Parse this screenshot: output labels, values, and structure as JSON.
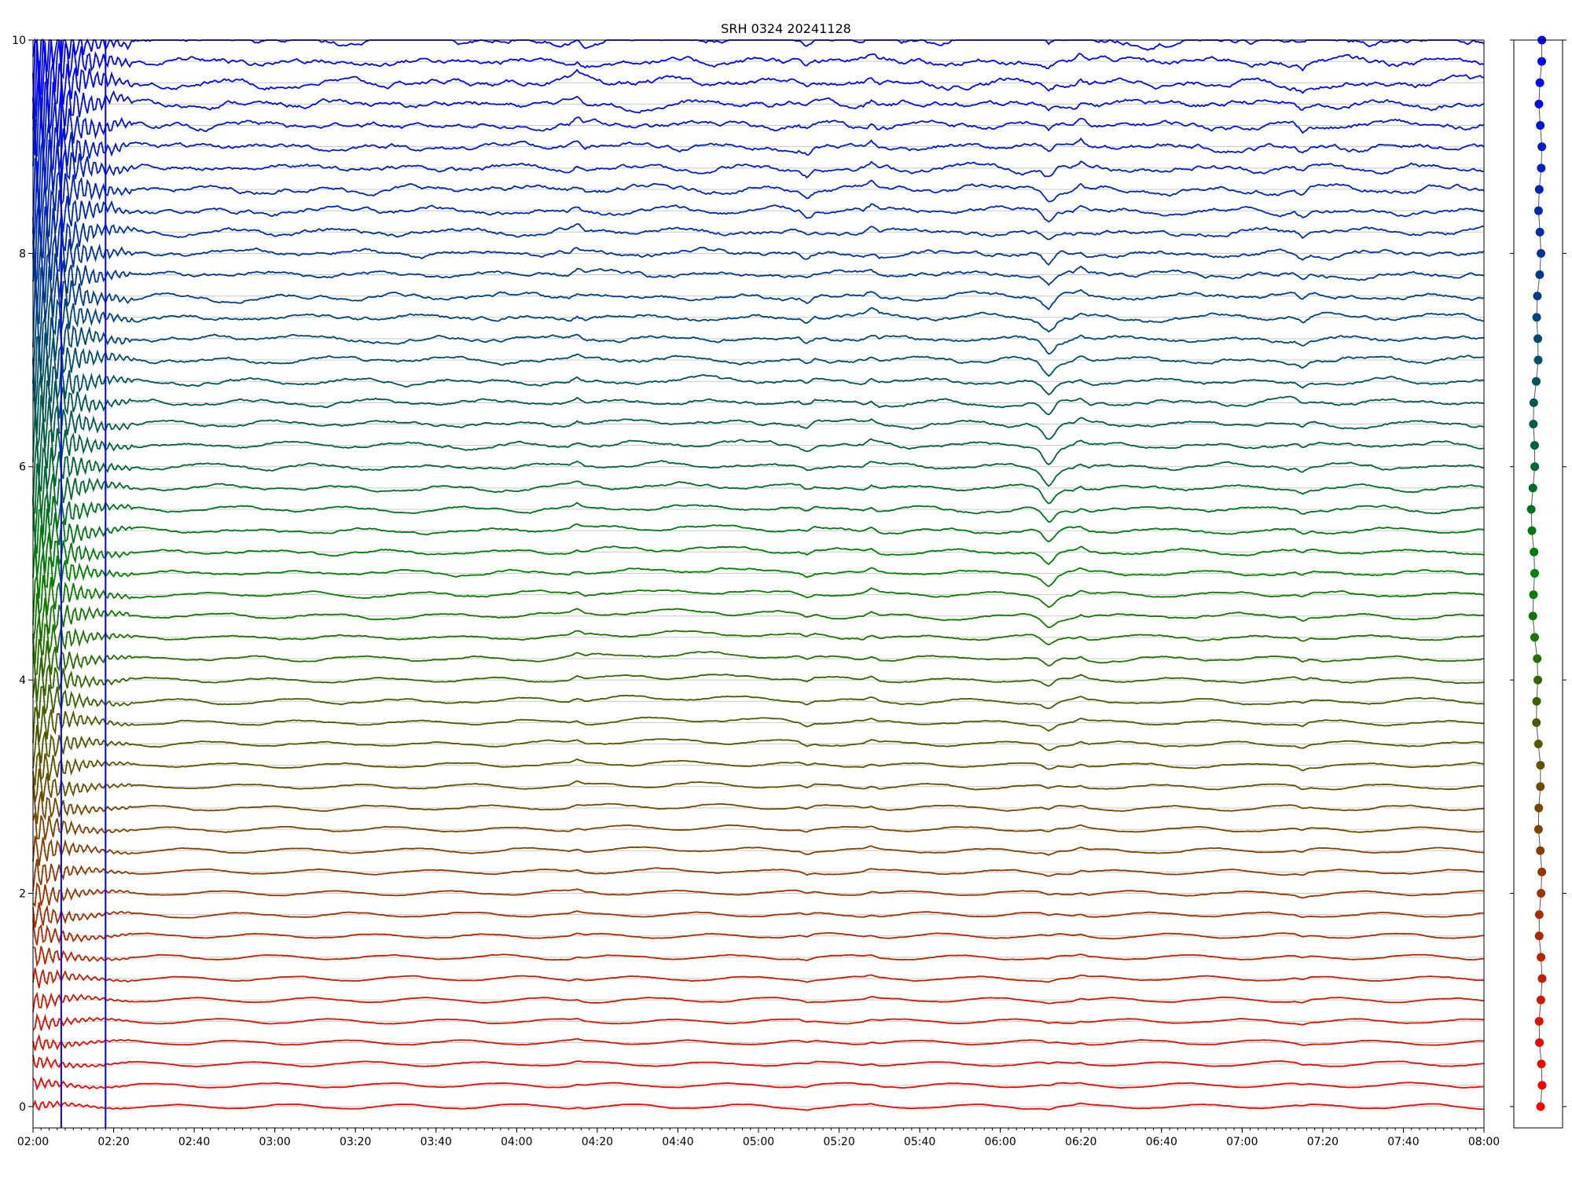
{
  "chart_data": [
    {
      "type": "line",
      "title": "SRH 0324 20241128",
      "xlabel": "",
      "ylabel": "",
      "x_start": "02:00",
      "x_end": "08:00",
      "x_tick_labels": [
        "02:00",
        "02:20",
        "02:40",
        "03:00",
        "03:20",
        "03:40",
        "04:00",
        "04:20",
        "04:40",
        "05:00",
        "05:20",
        "05:40",
        "06:00",
        "06:20",
        "06:40",
        "07:00",
        "07:20",
        "07:40",
        "08:00"
      ],
      "ylim": [
        -0.2,
        10
      ],
      "y_ticks": [
        0,
        2,
        4,
        6,
        8,
        10
      ],
      "y_tick_labels": [
        "0",
        "2",
        "4",
        "6",
        "8",
        "10"
      ],
      "grid": "horizontal lines at each trace baseline",
      "color_start": "#ff0000",
      "color_end": "#0000ff",
      "n_traces": 51,
      "trace_baseline_step": 0.2,
      "trace_baseline_first": 0.0,
      "features": {
        "startup_burst": {
          "start": "02:00",
          "end": "02:25"
        },
        "spike_times": [
          "04:15",
          "05:12",
          "05:28",
          "06:12",
          "06:20",
          "07:15"
        ],
        "dip_time": "06:12"
      }
    },
    {
      "type": "scatter",
      "ylim": [
        -0.2,
        10
      ],
      "n_points": 51,
      "y_start": 0.0,
      "y_step": 0.2,
      "color_start": "#ff0000",
      "color_end": "#0000ff"
    }
  ]
}
